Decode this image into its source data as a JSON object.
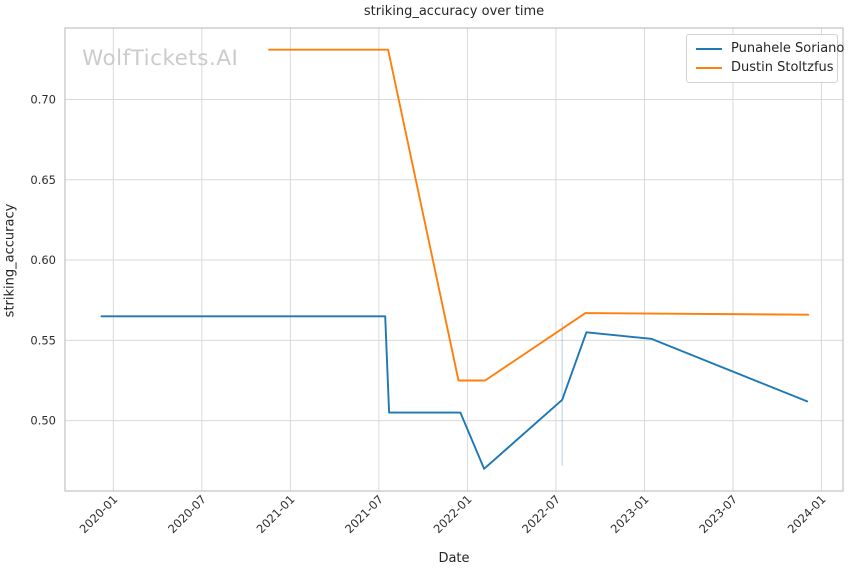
{
  "title": "striking_accuracy over time",
  "watermark": "WolfTickets.AI",
  "legend": {
    "entries": [
      {
        "label": "Punahele Soriano",
        "color": "#1f77b4"
      },
      {
        "label": "Dustin Stoltzfus",
        "color": "#ff7f0e"
      }
    ]
  },
  "colors": {
    "background": "#ffffff",
    "grid": "#d9d9d9",
    "spine": "#c5c5c5",
    "text": "#262626",
    "tick_text": "#2e2e2e",
    "watermark": "#cbcbcb",
    "series_blue": "#1f77b4",
    "series_orange": "#ff7f0e",
    "annotation": "rgba(31,119,180,0.25)"
  },
  "chart_data": {
    "type": "line",
    "title": "striking_accuracy over time",
    "xlabel": "Date",
    "ylabel": "striking_accuracy",
    "grid": true,
    "legend_position": "upper right",
    "x_domain": [
      "2019-09-23",
      "2024-02-15"
    ],
    "y_domain": [
      0.4562,
      0.7445
    ],
    "x_ticks": [
      "2020-01",
      "2020-07",
      "2021-01",
      "2021-07",
      "2022-01",
      "2022-07",
      "2023-01",
      "2023-07",
      "2024-01"
    ],
    "y_ticks": [
      0.5,
      0.55,
      0.6,
      0.65,
      0.7
    ],
    "y_tick_labels": [
      "0.50",
      "0.55",
      "0.60",
      "0.65",
      "0.70"
    ],
    "series": [
      {
        "name": "Punahele Soriano",
        "color": "#1f77b4",
        "points": [
          [
            "2019-12-07",
            0.565
          ],
          [
            "2021-07-14",
            0.565
          ],
          [
            "2021-07-22",
            0.505
          ],
          [
            "2021-12-17",
            0.505
          ],
          [
            "2022-02-05",
            0.47
          ],
          [
            "2022-07-14",
            0.513
          ],
          [
            "2022-09-03",
            0.555
          ],
          [
            "2023-01-15",
            0.551
          ],
          [
            "2023-12-02",
            0.512
          ]
        ]
      },
      {
        "name": "Dustin Stoltzfus",
        "color": "#ff7f0e",
        "points": [
          [
            "2020-11-18",
            0.731
          ],
          [
            "2021-07-20",
            0.731
          ],
          [
            "2021-12-13",
            0.525
          ],
          [
            "2022-02-07",
            0.525
          ],
          [
            "2022-09-01",
            0.567
          ],
          [
            "2023-12-04",
            0.566
          ]
        ]
      }
    ],
    "annotations": [
      {
        "type": "vline_segment",
        "x": "2022-07-14",
        "y_from": 0.472,
        "y_to": 0.561,
        "color": "rgba(31,119,180,0.25)"
      }
    ]
  }
}
